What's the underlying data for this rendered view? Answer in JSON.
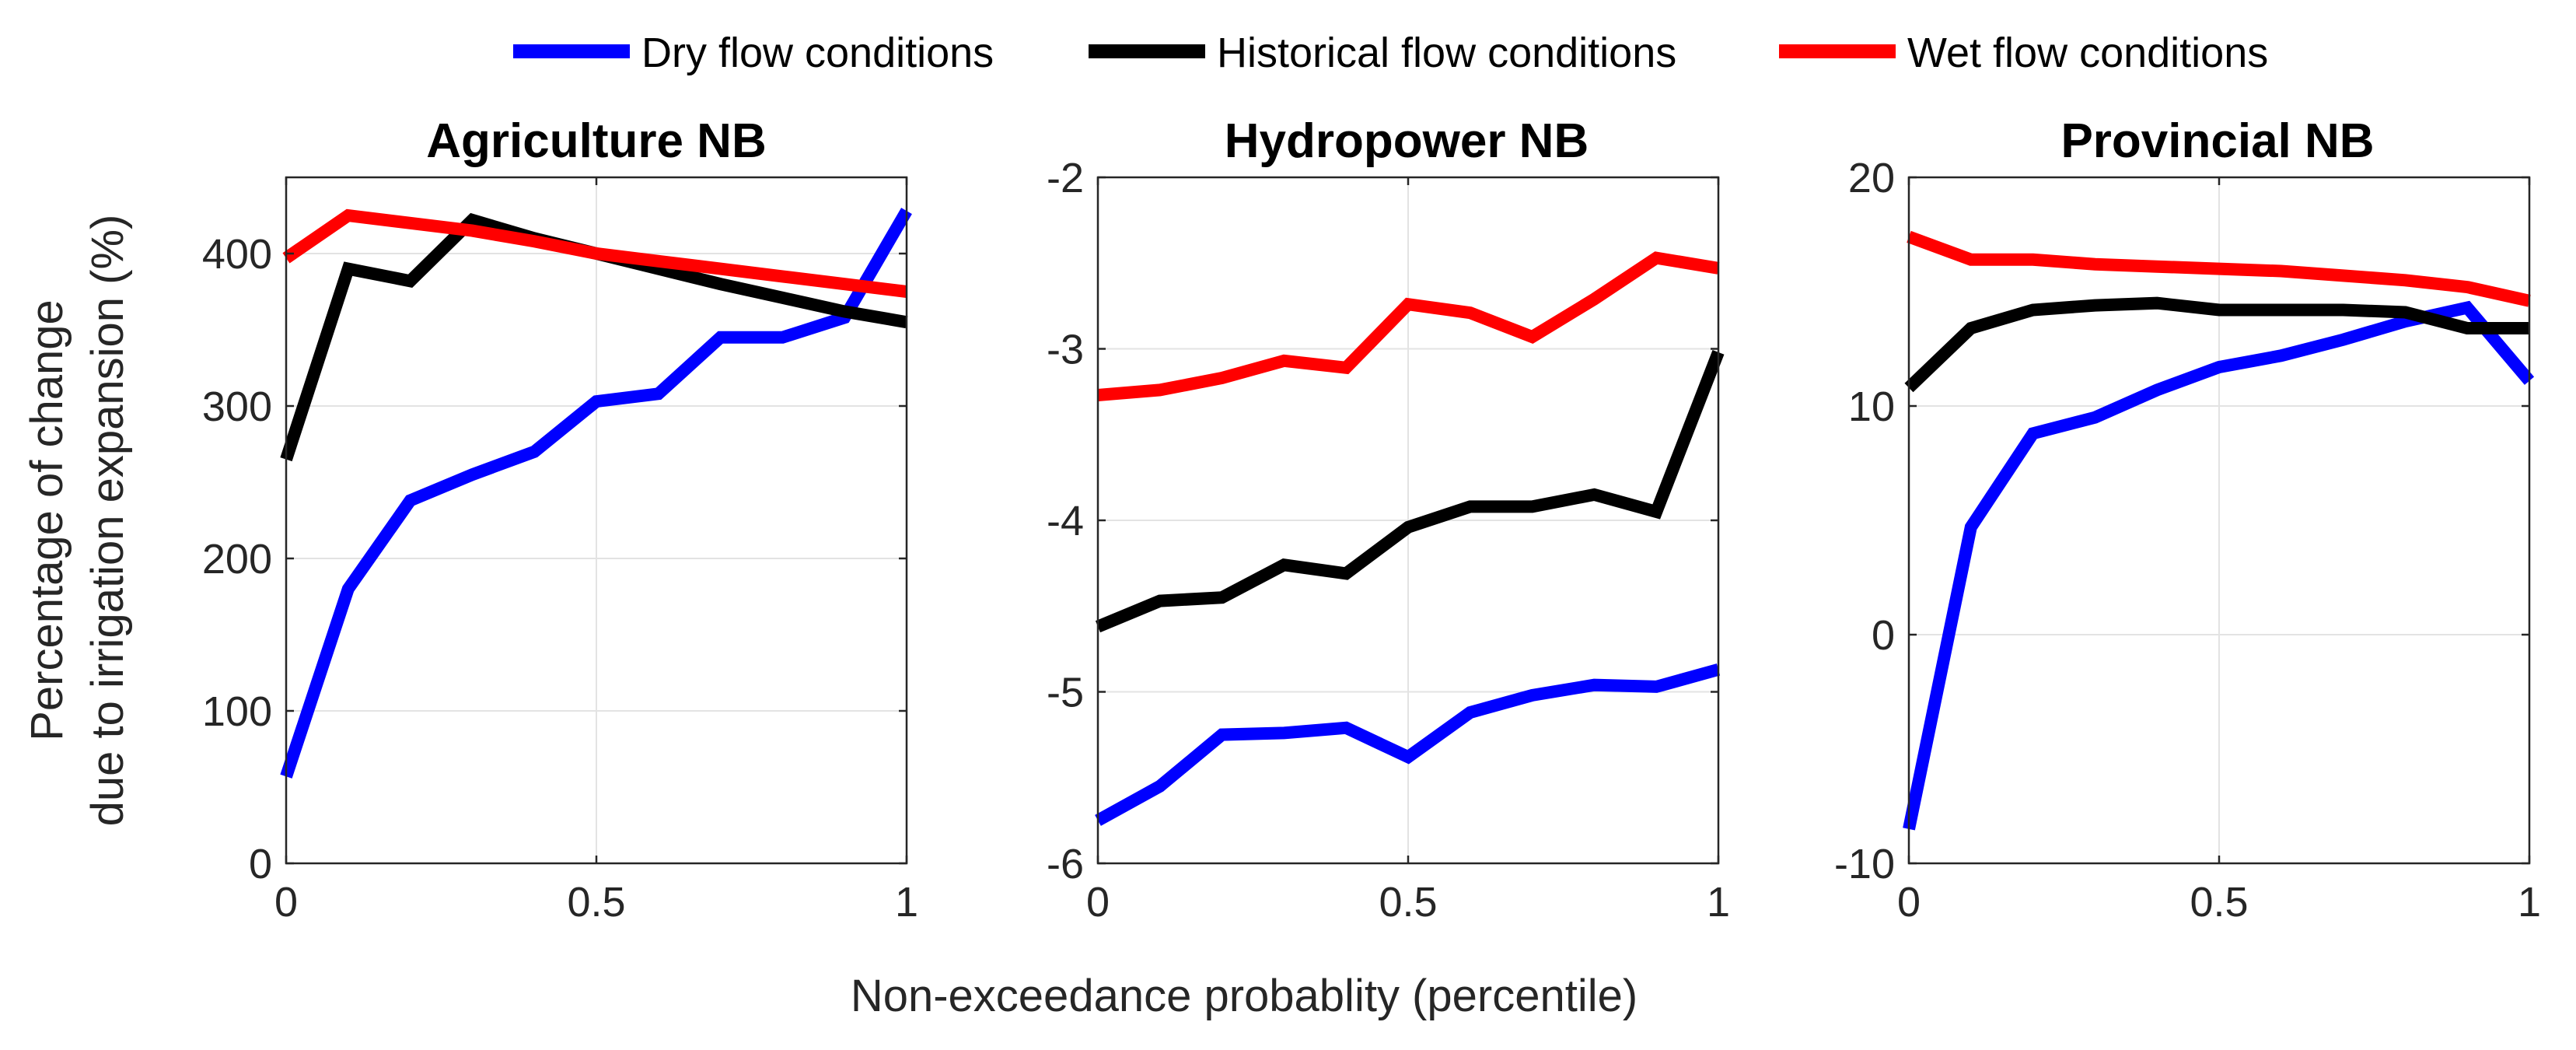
{
  "figure": {
    "xlabel": "Non-exceedance probablity (percentile)",
    "ylabel_line1": "Percentage of change",
    "ylabel_line2": "due to irrigation expansion (%)"
  },
  "legend": [
    {
      "name": "Dry flow conditions",
      "color": "#0000ff"
    },
    {
      "name": "Historical flow conditions",
      "color": "#000000"
    },
    {
      "name": "Wet flow conditions",
      "color": "#ff0000"
    }
  ],
  "chart_data": [
    {
      "type": "line",
      "title": "Agriculture NB",
      "xlabel": "Non-exceedance probablity (percentile)",
      "ylabel": "Percentage of change due to irrigation expansion (%)",
      "xlim": [
        0,
        1
      ],
      "ylim": [
        0,
        450
      ],
      "xticks": [
        0,
        0.5,
        1
      ],
      "xtick_labels": [
        "0",
        "0.5",
        "1"
      ],
      "yticks": [
        0,
        100,
        200,
        300,
        400
      ],
      "ytick_labels": [
        "0",
        "100",
        "200",
        "300",
        "400"
      ],
      "grid": true,
      "x": [
        0,
        0.1,
        0.2,
        0.3,
        0.4,
        0.5,
        0.6,
        0.7,
        0.8,
        0.9,
        1.0
      ],
      "series": [
        {
          "name": "Dry flow conditions",
          "color": "#0000ff",
          "values": [
            57,
            180,
            238,
            255,
            270,
            303,
            308,
            345,
            345,
            358,
            428
          ]
        },
        {
          "name": "Historical flow conditions",
          "color": "#000000",
          "values": [
            265,
            390,
            382,
            422,
            410,
            400,
            390,
            380,
            371,
            362,
            355
          ]
        },
        {
          "name": "Wet flow conditions",
          "color": "#ff0000",
          "values": [
            397,
            425,
            420,
            415,
            408,
            400,
            395,
            390,
            385,
            380,
            375
          ]
        }
      ]
    },
    {
      "type": "line",
      "title": "Hydropower NB",
      "xlim": [
        0,
        1
      ],
      "ylim": [
        -6,
        -2
      ],
      "xticks": [
        0,
        0.5,
        1
      ],
      "xtick_labels": [
        "0",
        "0.5",
        "1"
      ],
      "yticks": [
        -6,
        -5,
        -4,
        -3,
        -2
      ],
      "ytick_labels": [
        "-6",
        "-5",
        "-4",
        "-3",
        "-2"
      ],
      "grid": true,
      "x": [
        0,
        0.1,
        0.2,
        0.3,
        0.4,
        0.5,
        0.6,
        0.7,
        0.8,
        0.9,
        1.0
      ],
      "series": [
        {
          "name": "Dry flow conditions",
          "color": "#0000ff",
          "values": [
            -5.75,
            -5.55,
            -5.25,
            -5.24,
            -5.21,
            -5.38,
            -5.12,
            -5.02,
            -4.96,
            -4.97,
            -4.87
          ]
        },
        {
          "name": "Historical flow conditions",
          "color": "#000000",
          "values": [
            -4.62,
            -4.47,
            -4.45,
            -4.26,
            -4.31,
            -4.04,
            -3.92,
            -3.92,
            -3.85,
            -3.95,
            -3.02
          ]
        },
        {
          "name": "Wet flow conditions",
          "color": "#ff0000",
          "values": [
            -3.27,
            -3.24,
            -3.17,
            -3.07,
            -3.11,
            -2.74,
            -2.79,
            -2.93,
            -2.71,
            -2.47,
            -2.53
          ]
        }
      ]
    },
    {
      "type": "line",
      "title": "Provincial NB",
      "xlim": [
        0,
        1
      ],
      "ylim": [
        -10,
        20
      ],
      "xticks": [
        0,
        0.5,
        1
      ],
      "xtick_labels": [
        "0",
        "0.5",
        "1"
      ],
      "yticks": [
        -10,
        0,
        10,
        20
      ],
      "ytick_labels": [
        "-10",
        "0",
        "10",
        "20"
      ],
      "grid": true,
      "x": [
        0,
        0.1,
        0.2,
        0.3,
        0.4,
        0.5,
        0.6,
        0.7,
        0.8,
        0.9,
        1.0
      ],
      "series": [
        {
          "name": "Dry flow conditions",
          "color": "#0000ff",
          "values": [
            -8.5,
            4.7,
            8.8,
            9.5,
            10.7,
            11.7,
            12.2,
            12.9,
            13.7,
            14.3,
            11.1
          ]
        },
        {
          "name": "Historical flow conditions",
          "color": "#000000",
          "values": [
            10.8,
            13.4,
            14.2,
            14.4,
            14.5,
            14.2,
            14.2,
            14.2,
            14.1,
            13.4,
            13.4
          ]
        },
        {
          "name": "Wet flow conditions",
          "color": "#ff0000",
          "values": [
            17.4,
            16.4,
            16.4,
            16.2,
            16.1,
            16.0,
            15.9,
            15.7,
            15.5,
            15.2,
            14.6
          ]
        }
      ]
    }
  ]
}
